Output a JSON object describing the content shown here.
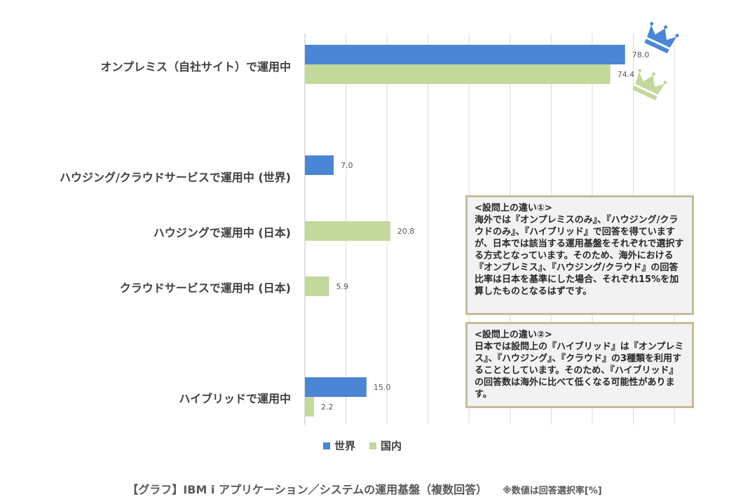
{
  "chart_data": {
    "type": "bar",
    "orientation": "horizontal",
    "categories": [
      "オンプレミス（自社サイト）で運用中",
      "ハウジング/クラウドサービスで運用中 (世界)",
      "ハウジングで運用中 (日本)",
      "クラウドサービスで運用中 (日本)",
      "ハイブリッドで運用中"
    ],
    "series": [
      {
        "name": "世界",
        "color": "#4a86d4",
        "values": [
          78.0,
          7.0,
          null,
          null,
          15.0
        ]
      },
      {
        "name": "国内",
        "color": "#c3d89b",
        "values": [
          74.4,
          null,
          20.8,
          5.9,
          2.2
        ]
      }
    ],
    "value_labels": [
      [
        "78.0",
        "7.0",
        null,
        null,
        "15.0"
      ],
      [
        "74.4",
        null,
        "20.8",
        "5.9",
        "2.2"
      ]
    ],
    "xlim": [
      0,
      90
    ],
    "grid": true,
    "legend_position": "bottom",
    "icons": [
      "crown-icon-blue",
      "crown-icon-green"
    ]
  },
  "notes": [
    {
      "title": "<設問上の違い①>",
      "body": "海外では『オンプレミスのみ』、『ハウジング/クラウドのみ』、『ハイブリッド』で回答を得ていますが、日本では該当する運用基盤をそれぞれで選択する方式となっています。そのため、海外における『オンプレミス』、『ハウジング/クラウド』の回答比率は日本を基準にした場合、それぞれ15%を加算したものとなるはずです。"
    },
    {
      "title": "<設問上の違い②>",
      "body": "日本では設問上の『ハイブリッド』は『オンプレミス』、『ハウジング』、『クラウド』の3種類を利用することとしています。そのため、『ハイブリッド』の回答数は海外に比べて低くなる可能性があります。"
    }
  ],
  "caption": {
    "title": "【グラフ】IBM i アプリケーション／システムの運用基盤（複数回答）",
    "note": "※数値は回答選択率[%]"
  }
}
